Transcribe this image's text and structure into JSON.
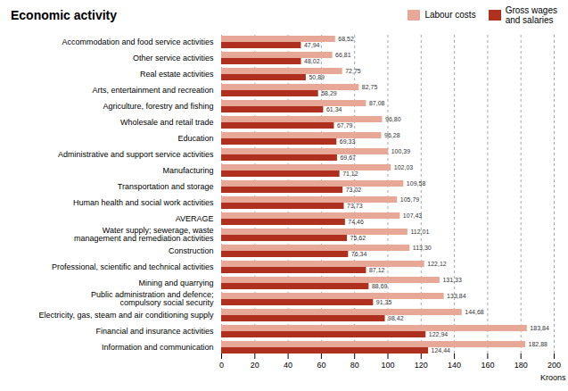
{
  "chart_data": {
    "type": "bar",
    "orientation": "horizontal",
    "title": "Economic activity",
    "xlabel": "Kroons",
    "categories": [
      "Accommodation and food service activities",
      "Other service activities",
      "Real estate activities",
      "Arts, entertainment and recreation",
      "Agriculture, forestry and fishing",
      "Wholesale and retail trade",
      "Education",
      "Administrative and support service activities",
      "Manufacturing",
      "Transportation and storage",
      "Human health and social work activities",
      "AVERAGE",
      "Water supply; sewerage, waste\nmanagement and remediation activities",
      "Construction",
      "Professional, scientific and technical activities",
      "Mining and quarrying",
      "Public administration and defence;\ncompulsory social security",
      "Electricity, gas, steam and air conditioning supply",
      "Financial and insurance activities",
      "Information and communication"
    ],
    "series": [
      {
        "name": "Labour costs",
        "color": "#e8a898",
        "values": [
          68.52,
          66.81,
          72.75,
          82.75,
          87.08,
          96.8,
          96.28,
          100.39,
          102.03,
          109.58,
          105.79,
          107.43,
          112.01,
          113.3,
          122.12,
          131.33,
          133.84,
          144.68,
          183.84,
          182.88
        ],
        "value_labels": [
          "68,52",
          "66,81",
          "72,75",
          "82,75",
          "87,08",
          "96,80",
          "96,28",
          "100,39",
          "102,03",
          "109,58",
          "105,79",
          "107,43",
          "112,01",
          "113,30",
          "122,12",
          "131,33",
          "133,84",
          "144,68",
          "183,84",
          "182,88"
        ]
      },
      {
        "name": "Gross wages\nand salaries",
        "color": "#b03020",
        "values": [
          47.94,
          48.02,
          50.89,
          58.29,
          61.34,
          67.79,
          69.33,
          69.67,
          71.12,
          73.02,
          73.73,
          74.46,
          75.62,
          76.34,
          87.12,
          88.69,
          91.35,
          98.42,
          122.94,
          124.44
        ],
        "value_labels": [
          "47,94",
          "48,02",
          "50,89",
          "58,29",
          "61,34",
          "67,79",
          "69,33",
          "69,67",
          "71,12",
          "73,02",
          "73,73",
          "74,46",
          "75,62",
          "76,34",
          "87,12",
          "88,69",
          "91,35",
          "98,42",
          "122,94",
          "124,44"
        ]
      }
    ],
    "xlim": [
      0,
      200
    ],
    "xticks": [
      0,
      20,
      40,
      60,
      80,
      100,
      120,
      140,
      160,
      180,
      200
    ],
    "grid": true,
    "legend": "upper right",
    "data_labels": true
  }
}
